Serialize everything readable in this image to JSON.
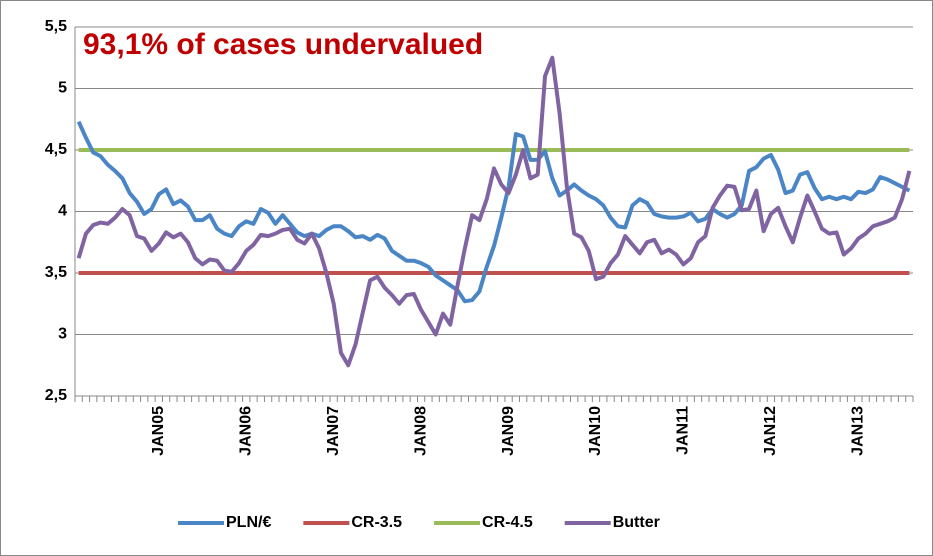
{
  "chart_data": {
    "type": "line",
    "title": "93,1% of cases undervalued",
    "categories": [
      null,
      null,
      null,
      null,
      null,
      null,
      null,
      null,
      null,
      null,
      null,
      "JAN05",
      null,
      null,
      null,
      null,
      null,
      null,
      null,
      null,
      null,
      null,
      null,
      "JAN06",
      null,
      null,
      null,
      null,
      null,
      null,
      null,
      null,
      null,
      null,
      null,
      "JAN07",
      null,
      null,
      null,
      null,
      null,
      null,
      null,
      null,
      null,
      null,
      null,
      "JAN08",
      null,
      null,
      null,
      null,
      null,
      null,
      null,
      null,
      null,
      null,
      null,
      "JAN09",
      null,
      null,
      null,
      null,
      null,
      null,
      null,
      null,
      null,
      null,
      null,
      "JAN10",
      null,
      null,
      null,
      null,
      null,
      null,
      null,
      null,
      null,
      null,
      null,
      "JAN11",
      null,
      null,
      null,
      null,
      null,
      null,
      null,
      null,
      null,
      null,
      null,
      "JAN12",
      null,
      null,
      null,
      null,
      null,
      null,
      null,
      null,
      null,
      null,
      null,
      "JAN13",
      null,
      null,
      null,
      null,
      null,
      null,
      null
    ],
    "series": [
      {
        "name": "PLN/€",
        "color": "#4a86c6",
        "values": [
          4.73,
          4.6,
          4.48,
          4.45,
          4.38,
          4.33,
          4.27,
          4.15,
          4.08,
          3.98,
          4.02,
          4.14,
          4.18,
          4.06,
          4.09,
          4.04,
          3.93,
          3.93,
          3.97,
          3.86,
          3.82,
          3.8,
          3.88,
          3.92,
          3.9,
          4.02,
          3.99,
          3.9,
          3.97,
          3.9,
          3.83,
          3.8,
          3.82,
          3.8,
          3.85,
          3.88,
          3.88,
          3.84,
          3.79,
          3.8,
          3.77,
          3.81,
          3.78,
          3.68,
          3.64,
          3.6,
          3.6,
          3.58,
          3.55,
          3.48,
          3.44,
          3.4,
          3.36,
          3.27,
          3.28,
          3.35,
          3.55,
          3.72,
          3.95,
          4.2,
          4.63,
          4.61,
          4.42,
          4.42,
          4.49,
          4.27,
          4.13,
          4.17,
          4.22,
          4.17,
          4.13,
          4.1,
          4.05,
          3.95,
          3.88,
          3.87,
          4.05,
          4.1,
          4.07,
          3.98,
          3.96,
          3.95,
          3.95,
          3.96,
          3.99,
          3.92,
          3.94,
          4.02,
          3.98,
          3.95,
          3.98,
          4.05,
          4.33,
          4.36,
          4.43,
          4.46,
          4.34,
          4.15,
          4.17,
          4.3,
          4.32,
          4.19,
          4.1,
          4.12,
          4.1,
          4.12,
          4.1,
          4.16,
          4.15,
          4.18,
          4.28,
          4.26,
          4.23,
          4.2,
          4.17
        ]
      },
      {
        "name": "CR-3.5",
        "color": "#c0504d",
        "values": [
          3.5,
          3.5,
          3.5,
          3.5,
          3.5,
          3.5,
          3.5,
          3.5,
          3.5,
          3.5,
          3.5,
          3.5,
          3.5,
          3.5,
          3.5,
          3.5,
          3.5,
          3.5,
          3.5,
          3.5,
          3.5,
          3.5,
          3.5,
          3.5,
          3.5,
          3.5,
          3.5,
          3.5,
          3.5,
          3.5,
          3.5,
          3.5,
          3.5,
          3.5,
          3.5,
          3.5,
          3.5,
          3.5,
          3.5,
          3.5,
          3.5,
          3.5,
          3.5,
          3.5,
          3.5,
          3.5,
          3.5,
          3.5,
          3.5,
          3.5,
          3.5,
          3.5,
          3.5,
          3.5,
          3.5,
          3.5,
          3.5,
          3.5,
          3.5,
          3.5,
          3.5,
          3.5,
          3.5,
          3.5,
          3.5,
          3.5,
          3.5,
          3.5,
          3.5,
          3.5,
          3.5,
          3.5,
          3.5,
          3.5,
          3.5,
          3.5,
          3.5,
          3.5,
          3.5,
          3.5,
          3.5,
          3.5,
          3.5,
          3.5,
          3.5,
          3.5,
          3.5,
          3.5,
          3.5,
          3.5,
          3.5,
          3.5,
          3.5,
          3.5,
          3.5,
          3.5,
          3.5,
          3.5,
          3.5,
          3.5,
          3.5,
          3.5,
          3.5,
          3.5,
          3.5,
          3.5,
          3.5,
          3.5,
          3.5,
          3.5,
          3.5,
          3.5,
          3.5,
          3.5,
          3.5
        ]
      },
      {
        "name": "CR-4.5",
        "color": "#9bbb59",
        "values": [
          4.5,
          4.5,
          4.5,
          4.5,
          4.5,
          4.5,
          4.5,
          4.5,
          4.5,
          4.5,
          4.5,
          4.5,
          4.5,
          4.5,
          4.5,
          4.5,
          4.5,
          4.5,
          4.5,
          4.5,
          4.5,
          4.5,
          4.5,
          4.5,
          4.5,
          4.5,
          4.5,
          4.5,
          4.5,
          4.5,
          4.5,
          4.5,
          4.5,
          4.5,
          4.5,
          4.5,
          4.5,
          4.5,
          4.5,
          4.5,
          4.5,
          4.5,
          4.5,
          4.5,
          4.5,
          4.5,
          4.5,
          4.5,
          4.5,
          4.5,
          4.5,
          4.5,
          4.5,
          4.5,
          4.5,
          4.5,
          4.5,
          4.5,
          4.5,
          4.5,
          4.5,
          4.5,
          4.5,
          4.5,
          4.5,
          4.5,
          4.5,
          4.5,
          4.5,
          4.5,
          4.5,
          4.5,
          4.5,
          4.5,
          4.5,
          4.5,
          4.5,
          4.5,
          4.5,
          4.5,
          4.5,
          4.5,
          4.5,
          4.5,
          4.5,
          4.5,
          4.5,
          4.5,
          4.5,
          4.5,
          4.5,
          4.5,
          4.5,
          4.5,
          4.5,
          4.5,
          4.5,
          4.5,
          4.5,
          4.5,
          4.5,
          4.5,
          4.5,
          4.5,
          4.5,
          4.5,
          4.5,
          4.5,
          4.5,
          4.5,
          4.5,
          4.5,
          4.5,
          4.5,
          4.5
        ]
      },
      {
        "name": "Butter",
        "color": "#8064a2",
        "values": [
          3.62,
          3.82,
          3.89,
          3.91,
          3.9,
          3.95,
          4.02,
          3.97,
          3.8,
          3.78,
          3.68,
          3.74,
          3.83,
          3.79,
          3.82,
          3.75,
          3.62,
          3.57,
          3.61,
          3.6,
          3.52,
          3.51,
          3.58,
          3.68,
          3.73,
          3.81,
          3.8,
          3.82,
          3.85,
          3.86,
          3.77,
          3.74,
          3.82,
          3.7,
          3.5,
          3.25,
          2.85,
          2.75,
          2.92,
          3.18,
          3.44,
          3.47,
          3.38,
          3.32,
          3.25,
          3.32,
          3.33,
          3.2,
          3.1,
          3.0,
          3.17,
          3.08,
          3.4,
          3.7,
          3.97,
          3.93,
          4.1,
          4.35,
          4.22,
          4.15,
          4.3,
          4.5,
          4.27,
          4.3,
          5.1,
          5.25,
          4.8,
          4.2,
          3.82,
          3.79,
          3.68,
          3.45,
          3.47,
          3.58,
          3.65,
          3.8,
          3.73,
          3.66,
          3.75,
          3.77,
          3.66,
          3.69,
          3.65,
          3.57,
          3.62,
          3.75,
          3.8,
          4.03,
          4.13,
          4.21,
          4.2,
          4.01,
          4.02,
          4.17,
          3.84,
          3.98,
          4.03,
          3.88,
          3.75,
          3.95,
          4.13,
          4.0,
          3.86,
          3.82,
          3.83,
          3.65,
          3.7,
          3.78,
          3.82,
          3.88,
          3.9,
          3.92,
          3.95,
          4.1,
          4.33
        ]
      }
    ],
    "ylim": [
      2.5,
      5.5
    ],
    "yticks": [
      {
        "value": 2.5,
        "label": "2,5"
      },
      3,
      {
        "value": 3.5,
        "label": "3,5"
      },
      4,
      {
        "value": 4.5,
        "label": "4,5"
      },
      5,
      {
        "value": 5.5,
        "label": "5,5"
      }
    ],
    "grid": true,
    "legend": "bottom"
  }
}
